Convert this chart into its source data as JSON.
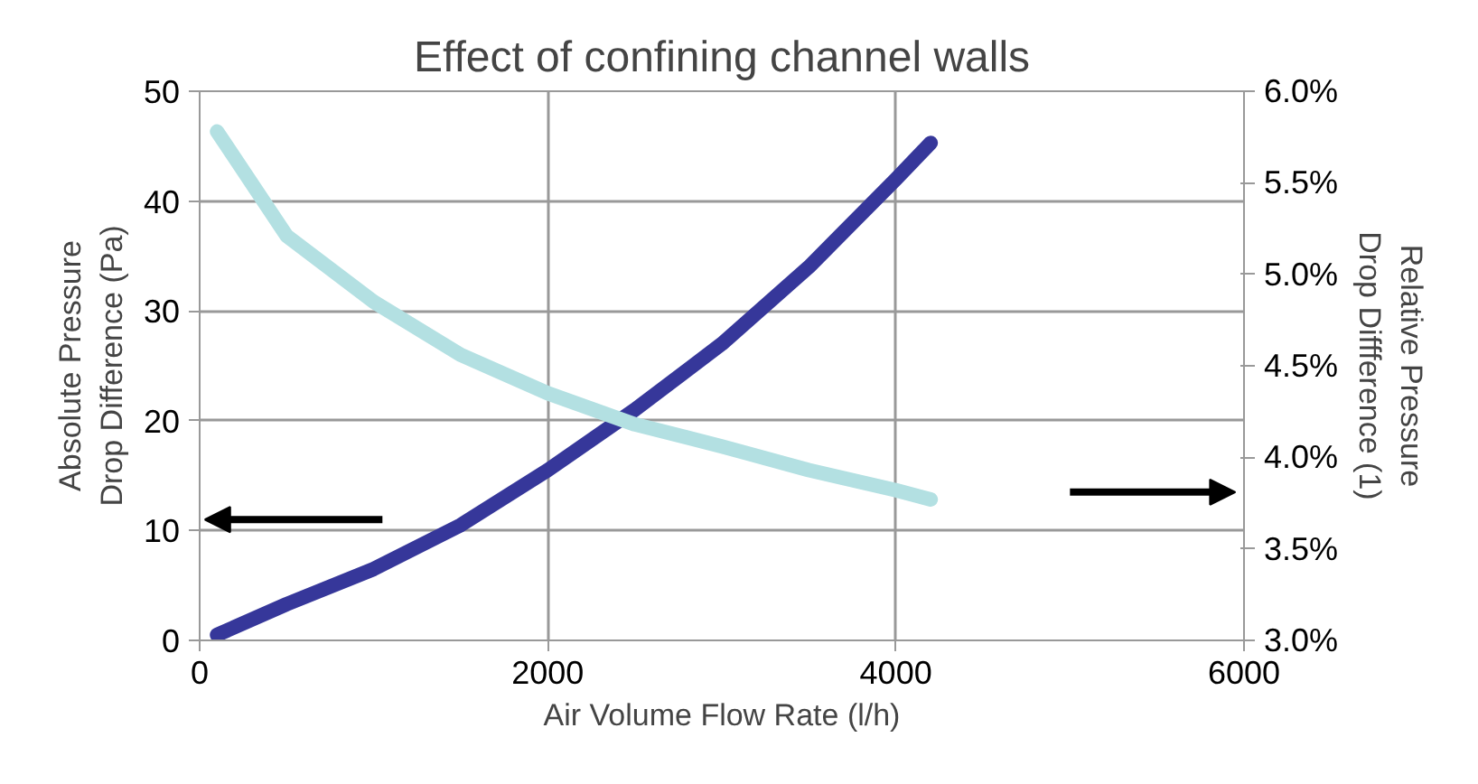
{
  "chart_data": {
    "type": "line",
    "title": "Effect of confining channel walls",
    "xlabel": "Air Volume Flow Rate (l/h)",
    "ylabel": "Absolute Pressure Drop Difference (Pa)",
    "y2label": "Relative Pressure Drop Diffference (1)",
    "series": [
      {
        "color": "#36379a",
        "x": [
          100,
          500,
          1000,
          1500,
          2000,
          2500,
          3000,
          3500,
          4000,
          4200
        ],
        "values": [
          0.5,
          3.3,
          6.5,
          10.5,
          15.5,
          21,
          27,
          34,
          42,
          45.3
        ]
      },
      {
        "color": "#b3e0e2",
        "axis": "y2",
        "x": [
          100,
          500,
          1000,
          1500,
          2000,
          2500,
          3000,
          3500,
          4000,
          4200
        ],
        "values": [
          5.78,
          5.21,
          4.85,
          4.56,
          4.35,
          4.18,
          4.06,
          3.93,
          3.82,
          3.77
        ]
      }
    ],
    "xlim": [
      0,
      6000
    ],
    "xticks": [
      0,
      2000,
      4000,
      6000
    ],
    "ylim": [
      0,
      50
    ],
    "yticks": [
      0,
      10,
      20,
      30,
      40,
      50
    ],
    "y2lim": [
      3.0,
      6.0
    ],
    "y2ticks": [
      {
        "value": 3.0,
        "label": "3.0%"
      },
      {
        "value": 3.5,
        "label": "3.5%"
      },
      {
        "value": 4.0,
        "label": "4.0%"
      },
      {
        "value": 4.5,
        "label": "4.5%"
      },
      {
        "value": 5.0,
        "label": "5.0%"
      },
      {
        "value": 5.5,
        "label": "5.5%"
      },
      {
        "value": 6.0,
        "label": "6.0%"
      }
    ],
    "grid": true,
    "marker": "none",
    "line_style": "solid"
  }
}
